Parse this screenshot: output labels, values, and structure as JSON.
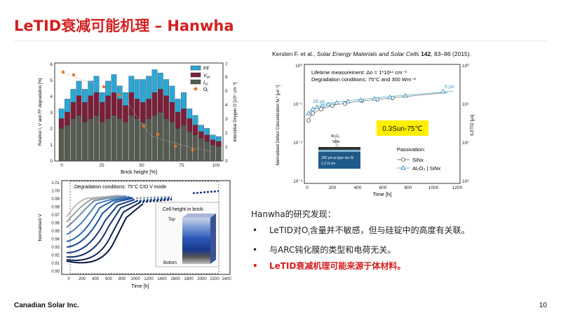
{
  "slide": {
    "title": "LeTID衰减可能机理 – Hanwha",
    "citation_authors": "Kersten F. et al., ",
    "citation_journal": "Solar Energy Materials and Solar Cells",
    "citation_volume": "142",
    "citation_rest": ", 83–86 (2015).",
    "footer_company": "Canadian Solar Inc.",
    "page_number": "10"
  },
  "findings": {
    "heading": "Hanwha的研究发现：",
    "bullet1_pre": "LeTID对O",
    "bullet1_sub": "i",
    "bullet1_post": "含量并不敏感，但与硅锭中的高度有关联。",
    "bullet2": "与ARC钝化膜的类型和电荷无关。",
    "bullet3": "LeTID衰减机理可能来源于体材料。"
  },
  "colors": {
    "title_red": "#d42020",
    "ff_cyan": "#2aa7d6",
    "voc_maroon": "#7a1e3a",
    "isc_gray": "#555b50",
    "oxygen_orange": "#e07a2a",
    "highlight_yellow": "#ffee00"
  },
  "figure_bar": {
    "legend": [
      "FF",
      "V",
      "I",
      "O"
    ],
    "legend_subs": [
      "",
      "oc",
      "sc",
      "i"
    ],
    "xlabel": "Brick height [%]",
    "ylabel_left": "Relative I, V and FF degradation [%]",
    "ylabel_right": "Interstitial Oxygen O [10¹⁷ cm⁻³]",
    "x_ticks": [
      "0",
      "25",
      "50",
      "75",
      "100"
    ],
    "y_ticks_left": [
      "0",
      "1",
      "2",
      "3",
      "4",
      "5",
      "6"
    ],
    "y_ticks_right": [
      "0",
      "1",
      "2",
      "3",
      "4",
      "5",
      "6",
      "7"
    ]
  },
  "figure_voc": {
    "caption": "Degradation conditions: 75°C CID V mode",
    "caption_sub": "oc",
    "ylabel": "Normalised V",
    "xlabel": "Time [h]",
    "y_ticks": [
      "1.01",
      "1.00",
      "0.99",
      "0.98",
      "0.97",
      "0.96",
      "0.95",
      "0.94",
      "0.93",
      "0.92",
      "0.91",
      "0.90"
    ],
    "x_ticks": [
      "0",
      "200",
      "400",
      "600",
      "800",
      "1000",
      "1200",
      "1400",
      "1600",
      "1800",
      "2000",
      "2200",
      "2400"
    ],
    "cell_height_label": "Cell height in brick:",
    "top_label": "Top",
    "bottom_label": "Bottom"
  },
  "figure_defect": {
    "line1": "Lifetime measurement: Δn = 1*10¹⁴ cm⁻³",
    "line2": "Degradation conditions: 75°C and 300 Wm⁻²",
    "label_5us": "5 μs",
    "label_18us": "18 μs",
    "highlight": "0.3Sun-75℃",
    "ylabel": "Normalised Defect Concentration Nₜ* [μs⁻¹]",
    "ylabel_right": "τLETID [μs]",
    "xlabel": "Time [h]",
    "x_ticks": [
      "0",
      "200",
      "400",
      "600",
      "800",
      "1000",
      "1200"
    ],
    "y_ticks_left": [
      "10⁰",
      "10⁻¹",
      "10⁻²",
      "10⁻³"
    ],
    "y_ticks_right": [
      "10⁰",
      "10¹",
      "10²",
      "10³"
    ],
    "passivation_title": "Passivation:",
    "legend_sinx": "SiNx",
    "legend_al2o3": "Al₂O₃ | SiNx",
    "diagram_al2o3": "Al₂O₃",
    "diagram_sinx": "SiNx",
    "diagram_line1": "200 μm p-type mc-Si",
    "diagram_line2": "1.2 Ω cm"
  }
}
